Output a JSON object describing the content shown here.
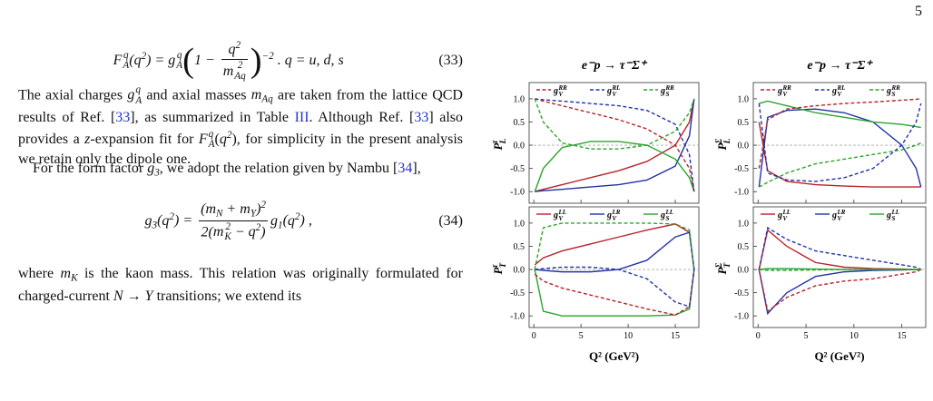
{
  "page_number": "5",
  "equations": [
    {
      "runs": [
        {
          "v": "F",
          "sup": "q",
          "sub": "A"
        },
        "(",
        {
          "v": "q",
          "sup": "2"
        },
        ") = ",
        {
          "v": "g",
          "sup": "q",
          "sub": "A"
        },
        {
          "open": "(",
          "body": [
            "1 − ",
            {
              "frac": [
                [
                  {
                    "v": "q",
                    "sup": "2"
                  }
                ],
                [
                  {
                    "v": "m",
                    "sup": "2",
                    "sub": "Aq"
                  }
                ]
              ]
            }
          ],
          "close": ")",
          "sup": "−2"
        },
        " .    q = u, d, s"
      ],
      "number": "(33)"
    },
    {
      "runs": [
        {
          "v": "g",
          "sub": "3"
        },
        "(",
        {
          "v": "q",
          "sup": "2"
        },
        ") = ",
        {
          "frac": [
            [
              "(",
              {
                "v": "m",
                "sub": "N"
              },
              " + ",
              {
                "v": "m",
                "sub": "Y"
              },
              {
                "v": ")",
                "sup": "2"
              }
            ],
            [
              "2(",
              {
                "v": "m",
                "sup": "2",
                "sub": "K"
              },
              " − ",
              {
                "v": "q",
                "sup": "2"
              },
              ")"
            ]
          ]
        },
        {
          "v": "g",
          "sub": "1"
        },
        "(",
        {
          "v": "q",
          "sup": "2"
        },
        ") ,"
      ],
      "number": "(34)"
    }
  ],
  "paragraphs": [
    [
      "The axial charges ",
      {
        "v": "g",
        "sup": "q",
        "sub": "A"
      },
      " and axial masses ",
      {
        "v": "m",
        "sub": "Aq"
      },
      " are taken from the lattice QCD results of Ref. [",
      {
        "link": "33"
      },
      "], as summarized in Table ",
      {
        "link": "III"
      },
      ". Although Ref. [",
      {
        "link": "33"
      },
      "] also provides a ",
      {
        "v": "z"
      },
      "-expansion fit for ",
      {
        "v": "F",
        "sup": "q",
        "sub": "A"
      },
      "(",
      {
        "v": "q",
        "sup": "2"
      },
      "), for simplicity in the present analysis we retain only the dipole one."
    ],
    [
      "For the form factor ",
      {
        "v": "g",
        "sub": "3"
      },
      ", we adopt the relation given by Nambu [",
      {
        "link": "34"
      },
      "],"
    ],
    [
      "where ",
      {
        "v": "m",
        "sub": "K"
      },
      " is the kaon mass. This relation was originally formulated for charged-current ",
      {
        "v": "N → Y"
      },
      " transitions; we extend its"
    ]
  ],
  "figure": {
    "xlabel": "Q² (GeV²)",
    "xlim": [
      -0.5,
      17.5
    ],
    "xticks": [
      0,
      5,
      10,
      15
    ],
    "ylim": [
      -1.25,
      1.35
    ],
    "yticks": [
      {
        "value": -1,
        "label": "-1.0"
      },
      {
        "value": -0.5,
        "label": "-0.5"
      },
      {
        "value": 0,
        "label": "0.0"
      },
      {
        "value": 0.5,
        "label": "0.5"
      },
      {
        "value": 1,
        "label": "1.0"
      }
    ],
    "x": [
      0.1,
      1,
      3,
      6,
      9,
      12,
      15,
      16.5,
      17
    ],
    "series": [
      {
        "name": {
          "symbol": "g",
          "sub": "V",
          "sup": "LL"
        },
        "color": "#b8232b",
        "dash": false
      },
      {
        "name": {
          "symbol": "g",
          "sub": "V",
          "sup": "LR"
        },
        "color": "#2233a6",
        "dash": false
      },
      {
        "name": {
          "symbol": "g",
          "sub": "S",
          "sup": "LL"
        },
        "color": "#2aa52a",
        "dash": false
      },
      {
        "name": {
          "symbol": "g",
          "sub": "V",
          "sup": "RR"
        },
        "color": "#b8232b",
        "dash": true
      },
      {
        "name": {
          "symbol": "g",
          "sub": "V",
          "sup": "RL"
        },
        "color": "#2233a6",
        "dash": true
      },
      {
        "name": {
          "symbol": "g",
          "sub": "S",
          "sup": "RR"
        },
        "color": "#2aa52a",
        "dash": true
      }
    ],
    "panels": [
      {
        "title": "e⁻p → τ⁻Σ⁺",
        "ylabel": {
          "symbol": "P",
          "sub": "L",
          "sup": "τ"
        },
        "values": [
          [
            -1.0,
            -0.95,
            -0.85,
            -0.7,
            -0.55,
            -0.35,
            0.0,
            0.5,
            1.0
          ],
          [
            -1.0,
            -0.98,
            -0.95,
            -0.9,
            -0.85,
            -0.75,
            -0.45,
            0.2,
            1.0
          ],
          [
            -1.0,
            -0.5,
            -0.05,
            0.08,
            0.08,
            0.0,
            -0.3,
            -0.7,
            -1.0
          ],
          [
            1.0,
            0.95,
            0.85,
            0.7,
            0.55,
            0.35,
            0.0,
            -0.5,
            -1.0
          ],
          [
            1.0,
            0.98,
            0.95,
            0.9,
            0.85,
            0.75,
            0.45,
            -0.2,
            -1.0
          ],
          [
            1.0,
            0.5,
            0.05,
            -0.08,
            -0.08,
            0.0,
            0.3,
            0.7,
            1.0
          ]
        ]
      },
      {
        "title": "e⁻p → τ⁻Σ⁺",
        "ylabel": {
          "symbol": "P",
          "sub": "L",
          "sup": "Σ"
        },
        "values": [
          [
            0.5,
            -0.55,
            -0.78,
            -0.85,
            -0.88,
            -0.9,
            -0.9,
            -0.9,
            -0.9
          ],
          [
            -0.9,
            0.6,
            0.75,
            0.78,
            0.7,
            0.5,
            0.0,
            -0.5,
            -0.9
          ],
          [
            0.9,
            0.95,
            0.85,
            0.7,
            0.6,
            0.5,
            0.45,
            0.4,
            0.38
          ],
          [
            -0.5,
            0.55,
            0.78,
            0.85,
            0.9,
            0.93,
            0.97,
            0.99,
            1.0
          ],
          [
            0.9,
            -0.6,
            -0.75,
            -0.78,
            -0.7,
            -0.5,
            0.0,
            0.5,
            0.9
          ],
          [
            -0.9,
            -0.8,
            -0.6,
            -0.4,
            -0.3,
            -0.2,
            -0.1,
            0.0,
            0.05
          ]
        ]
      },
      {
        "ylabel": {
          "symbol": "P",
          "sub": "T",
          "sup": "τ"
        },
        "values": [
          [
            0.1,
            0.25,
            0.4,
            0.55,
            0.7,
            0.85,
            0.98,
            0.8,
            0.0
          ],
          [
            0.0,
            -0.02,
            -0.05,
            -0.05,
            0.0,
            0.2,
            0.7,
            0.8,
            0.0
          ],
          [
            0.0,
            -0.9,
            -1.0,
            -1.0,
            -1.0,
            -1.0,
            -0.98,
            -0.85,
            0.0
          ],
          [
            -0.1,
            -0.25,
            -0.4,
            -0.55,
            -0.7,
            -0.85,
            -0.98,
            -0.8,
            0.0
          ],
          [
            0.0,
            0.02,
            0.05,
            0.05,
            0.0,
            -0.2,
            -0.7,
            -0.8,
            0.0
          ],
          [
            0.0,
            0.9,
            1.0,
            1.0,
            1.0,
            1.0,
            0.98,
            0.85,
            0.0
          ]
        ]
      },
      {
        "ylabel": {
          "symbol": "P",
          "sub": "T",
          "sup": "Σ"
        },
        "values": [
          [
            0.0,
            0.85,
            0.5,
            0.15,
            0.05,
            0.02,
            0.01,
            0.0,
            0.0
          ],
          [
            0.0,
            -0.95,
            -0.5,
            -0.15,
            -0.05,
            -0.02,
            -0.01,
            0.0,
            0.0
          ],
          [
            0.0,
            0.02,
            0.02,
            0.01,
            0.0,
            0.0,
            0.0,
            0.0,
            0.0
          ],
          [
            0.0,
            -0.9,
            -0.6,
            -0.35,
            -0.25,
            -0.2,
            -0.1,
            -0.05,
            0.0
          ],
          [
            0.0,
            0.9,
            0.65,
            0.4,
            0.3,
            0.2,
            0.1,
            0.05,
            0.0
          ],
          [
            0.0,
            -0.02,
            -0.02,
            -0.01,
            0.0,
            0.0,
            0.0,
            0.0,
            0.0
          ]
        ]
      }
    ]
  }
}
